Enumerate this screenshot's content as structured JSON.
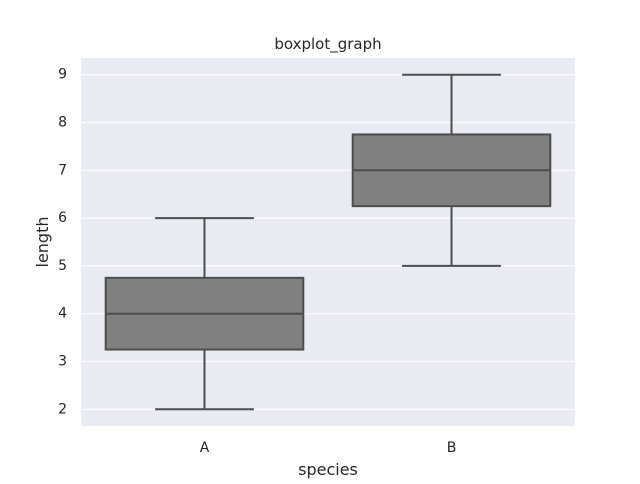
{
  "chart_data": {
    "type": "boxplot",
    "title": "boxplot_graph",
    "xlabel": "species",
    "ylabel": "length",
    "categories": [
      "A",
      "B"
    ],
    "boxes": [
      {
        "category": "A",
        "whisker_low": 2,
        "q1": 3.25,
        "median": 4,
        "q3": 4.75,
        "whisker_high": 6
      },
      {
        "category": "B",
        "whisker_low": 5,
        "q1": 6.25,
        "median": 7,
        "q3": 7.75,
        "whisker_high": 9
      }
    ],
    "ylim": [
      1.65,
      9.35
    ],
    "yticks": [
      2,
      3,
      4,
      5,
      6,
      7,
      8,
      9
    ],
    "grid": true,
    "legend": "none",
    "colors": {
      "plot_background": "#eaeaf2",
      "gridline": "#ffffff",
      "box_fill": "#808080",
      "box_edge": "#4d4d4d",
      "text": "#262626"
    }
  }
}
